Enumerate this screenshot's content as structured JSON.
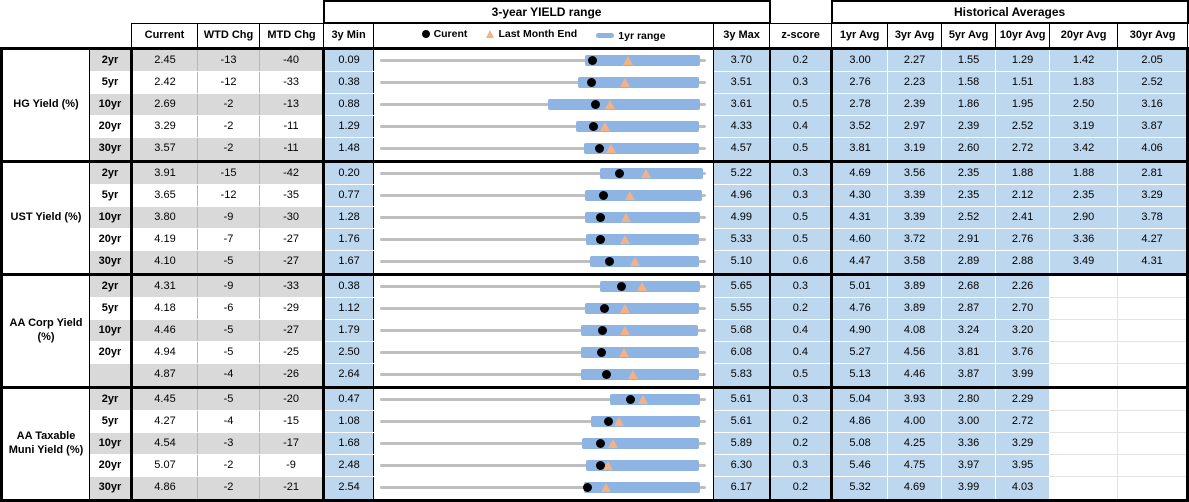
{
  "header": {
    "range_title": "3-year YIELD range",
    "hist_title": "Historical Averages",
    "cols": {
      "current": "Current",
      "wtd": "WTD Chg",
      "mtd": "MTD Chg",
      "min": "3y Min",
      "max": "3y Max",
      "z": "z-score"
    },
    "avg_cols": [
      "1yr Avg",
      "3yr Avg",
      "5yr Avg",
      "10yr Avg",
      "20yr Avg",
      "30yr Avg"
    ],
    "legend": {
      "current": "Curent",
      "last_month_end": "Last Month End",
      "range_1yr": "1yr range"
    }
  },
  "colors": {
    "cell_blue": "#bdd7ee",
    "cell_gray": "#d9d9d9",
    "bar_blue": "#8eb4e3",
    "track_gray": "#bfbfbf",
    "dot_black": "#000000",
    "triangle_orange": "#f4b183"
  },
  "chart_data": {
    "type": "table",
    "groups": [
      {
        "label": "HG Yield (%)",
        "rows": [
          {
            "tenor": "2yr",
            "current": 2.45,
            "wtd_chg": -13,
            "mtd_chg": -40,
            "min_3y": 0.09,
            "max_3y": 3.7,
            "range_1yr": [
              2.37,
              3.66
            ],
            "last_month_end": 2.85,
            "z_score": "0.2",
            "averages": [
              "3.00",
              "2.27",
              "1.55",
              "1.29",
              "1.42",
              "2.05"
            ]
          },
          {
            "tenor": "5yr",
            "current": 2.42,
            "wtd_chg": -12,
            "mtd_chg": -33,
            "min_3y": 0.38,
            "max_3y": 3.51,
            "range_1yr": [
              2.29,
              3.47
            ],
            "last_month_end": 2.75,
            "z_score": "0.3",
            "averages": [
              "2.76",
              "2.23",
              "1.58",
              "1.51",
              "1.83",
              "2.52"
            ]
          },
          {
            "tenor": "10yr",
            "current": 2.69,
            "wtd_chg": -2,
            "mtd_chg": -13,
            "min_3y": 0.88,
            "max_3y": 3.61,
            "range_1yr": [
              2.29,
              3.58
            ],
            "last_month_end": 2.82,
            "z_score": "0.5",
            "averages": [
              "2.78",
              "2.39",
              "1.86",
              "1.95",
              "2.50",
              "3.16"
            ]
          },
          {
            "tenor": "20yr",
            "current": 3.29,
            "wtd_chg": -2,
            "mtd_chg": -11,
            "min_3y": 1.29,
            "max_3y": 4.33,
            "range_1yr": [
              3.12,
              4.29
            ],
            "last_month_end": 3.4,
            "z_score": "0.4",
            "averages": [
              "3.52",
              "2.97",
              "2.39",
              "2.52",
              "3.19",
              "3.87"
            ]
          },
          {
            "tenor": "30yr",
            "current": 3.57,
            "wtd_chg": -2,
            "mtd_chg": -11,
            "min_3y": 1.48,
            "max_3y": 4.57,
            "range_1yr": [
              3.42,
              4.53
            ],
            "last_month_end": 3.68,
            "z_score": "0.5",
            "averages": [
              "3.81",
              "3.19",
              "2.60",
              "2.72",
              "3.42",
              "4.06"
            ]
          }
        ]
      },
      {
        "label": "UST Yield (%)",
        "rows": [
          {
            "tenor": "2yr",
            "current": 3.91,
            "wtd_chg": -15,
            "mtd_chg": -42,
            "min_3y": 0.2,
            "max_3y": 5.22,
            "range_1yr": [
              3.6,
              5.22
            ],
            "last_month_end": 4.33,
            "z_score": "0.3",
            "averages": [
              "4.69",
              "3.56",
              "2.35",
              "1.88",
              "1.88",
              "2.81"
            ]
          },
          {
            "tenor": "5yr",
            "current": 3.65,
            "wtd_chg": -12,
            "mtd_chg": -35,
            "min_3y": 0.77,
            "max_3y": 4.96,
            "range_1yr": [
              3.42,
              4.95
            ],
            "last_month_end": 4.0,
            "z_score": "0.3",
            "averages": [
              "4.30",
              "3.39",
              "2.35",
              "2.12",
              "2.35",
              "3.29"
            ]
          },
          {
            "tenor": "10yr",
            "current": 3.8,
            "wtd_chg": -9,
            "mtd_chg": -30,
            "min_3y": 1.28,
            "max_3y": 4.99,
            "range_1yr": [
              3.62,
              4.95
            ],
            "last_month_end": 4.1,
            "z_score": "0.5",
            "averages": [
              "4.31",
              "3.39",
              "2.52",
              "2.41",
              "2.90",
              "3.78"
            ]
          },
          {
            "tenor": "20yr",
            "current": 4.19,
            "wtd_chg": -7,
            "mtd_chg": -27,
            "min_3y": 1.76,
            "max_3y": 5.33,
            "range_1yr": [
              4.02,
              5.29
            ],
            "last_month_end": 4.46,
            "z_score": "0.5",
            "averages": [
              "4.60",
              "3.72",
              "2.91",
              "2.76",
              "3.36",
              "4.27"
            ]
          },
          {
            "tenor": "30yr",
            "current": 4.1,
            "wtd_chg": -5,
            "mtd_chg": -27,
            "min_3y": 1.67,
            "max_3y": 5.1,
            "range_1yr": [
              3.89,
              5.06
            ],
            "last_month_end": 4.37,
            "z_score": "0.6",
            "averages": [
              "4.47",
              "3.58",
              "2.89",
              "2.88",
              "3.49",
              "4.31"
            ]
          }
        ]
      },
      {
        "label": "AA Corp Yield (%)",
        "rows": [
          {
            "tenor": "2yr",
            "current": 4.31,
            "wtd_chg": -9,
            "mtd_chg": -33,
            "min_3y": 0.38,
            "max_3y": 5.65,
            "range_1yr": [
              3.96,
              5.6
            ],
            "last_month_end": 4.64,
            "z_score": "0.3",
            "averages": [
              "5.01",
              "3.89",
              "2.68",
              "2.26",
              "",
              ""
            ]
          },
          {
            "tenor": "5yr",
            "current": 4.18,
            "wtd_chg": -6,
            "mtd_chg": -29,
            "min_3y": 1.12,
            "max_3y": 5.55,
            "range_1yr": [
              3.92,
              5.5
            ],
            "last_month_end": 4.47,
            "z_score": "0.2",
            "averages": [
              "4.76",
              "3.89",
              "2.87",
              "2.70",
              "",
              ""
            ]
          },
          {
            "tenor": "10yr",
            "current": 4.46,
            "wtd_chg": -5,
            "mtd_chg": -27,
            "min_3y": 1.79,
            "max_3y": 5.68,
            "range_1yr": [
              4.2,
              5.62
            ],
            "last_month_end": 4.73,
            "z_score": "0.4",
            "averages": [
              "4.90",
              "4.08",
              "3.24",
              "3.20",
              "",
              ""
            ]
          },
          {
            "tenor": "20yr",
            "current": 4.94,
            "wtd_chg": -5,
            "mtd_chg": -25,
            "min_3y": 2.5,
            "max_3y": 6.08,
            "range_1yr": [
              4.71,
              6.04
            ],
            "last_month_end": 5.19,
            "z_score": "0.4",
            "averages": [
              "5.27",
              "4.56",
              "3.81",
              "3.76",
              "",
              ""
            ]
          },
          {
            "tenor": "",
            "current": 4.87,
            "wtd_chg": -4,
            "mtd_chg": -26,
            "min_3y": 2.64,
            "max_3y": 5.83,
            "range_1yr": [
              4.61,
              5.79
            ],
            "last_month_end": 5.13,
            "z_score": "0.5",
            "averages": [
              "5.13",
              "4.46",
              "3.87",
              "3.99",
              "",
              ""
            ]
          }
        ]
      },
      {
        "label": "AA Taxable Muni Yield (%)",
        "rows": [
          {
            "tenor": "2yr",
            "current": 4.45,
            "wtd_chg": -5,
            "mtd_chg": -20,
            "min_3y": 0.47,
            "max_3y": 5.61,
            "range_1yr": [
              4.12,
              5.56
            ],
            "last_month_end": 4.65,
            "z_score": "0.3",
            "averages": [
              "5.04",
              "3.93",
              "2.80",
              "2.29",
              "",
              ""
            ]
          },
          {
            "tenor": "5yr",
            "current": 4.27,
            "wtd_chg": -4,
            "mtd_chg": -15,
            "min_3y": 1.08,
            "max_3y": 5.61,
            "range_1yr": [
              4.02,
              5.56
            ],
            "last_month_end": 4.42,
            "z_score": "0.2",
            "averages": [
              "4.86",
              "4.00",
              "3.00",
              "2.72",
              "",
              ""
            ]
          },
          {
            "tenor": "10yr",
            "current": 4.54,
            "wtd_chg": -3,
            "mtd_chg": -17,
            "min_3y": 1.68,
            "max_3y": 5.89,
            "range_1yr": [
              4.3,
              5.84
            ],
            "last_month_end": 4.71,
            "z_score": "0.2",
            "averages": [
              "5.08",
              "4.25",
              "3.36",
              "3.29",
              "",
              ""
            ]
          },
          {
            "tenor": "20yr",
            "current": 5.07,
            "wtd_chg": -2,
            "mtd_chg": -9,
            "min_3y": 2.48,
            "max_3y": 6.3,
            "range_1yr": [
              4.9,
              6.25
            ],
            "last_month_end": 5.16,
            "z_score": "0.3",
            "averages": [
              "5.46",
              "4.75",
              "3.97",
              "3.95",
              "",
              ""
            ]
          },
          {
            "tenor": "30yr",
            "current": 4.86,
            "wtd_chg": -2,
            "mtd_chg": -21,
            "min_3y": 2.54,
            "max_3y": 6.17,
            "range_1yr": [
              4.82,
              6.13
            ],
            "last_month_end": 5.07,
            "z_score": "0.2",
            "averages": [
              "5.32",
              "4.69",
              "3.99",
              "4.03",
              "",
              ""
            ]
          }
        ]
      }
    ]
  }
}
